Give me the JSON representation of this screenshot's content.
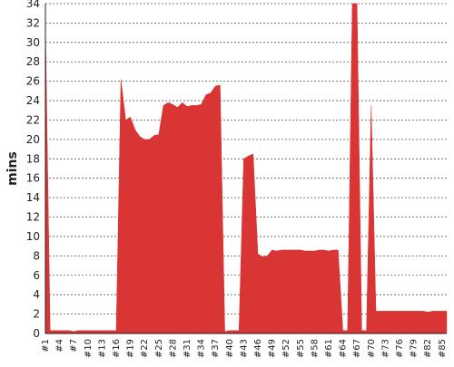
{
  "chart_data": {
    "type": "area",
    "title": "",
    "xlabel": "",
    "ylabel": "mins",
    "ylim": [
      0,
      34
    ],
    "y_ticks": [
      0,
      2,
      4,
      6,
      8,
      10,
      12,
      14,
      16,
      18,
      20,
      22,
      24,
      26,
      28,
      30,
      32,
      34
    ],
    "x_tick_labels": [
      "#1",
      "#4",
      "#7",
      "#10",
      "#13",
      "#16",
      "#19",
      "#22",
      "#25",
      "#28",
      "#31",
      "#34",
      "#37",
      "#40",
      "#43",
      "#46",
      "#49",
      "#52",
      "#55",
      "#58",
      "#61",
      "#64",
      "#67",
      "#70",
      "#73",
      "#76",
      "#79",
      "#82",
      "#85"
    ],
    "grid": "horizontal dashed",
    "legend": "none",
    "series": [
      {
        "color": "#d93535",
        "x": [
          "#1",
          "#2",
          "#3",
          "#4",
          "#5",
          "#6",
          "#7",
          "#8",
          "#9",
          "#10",
          "#11",
          "#12",
          "#13",
          "#14",
          "#15",
          "#16",
          "#17",
          "#18",
          "#19",
          "#20",
          "#21",
          "#22",
          "#23",
          "#24",
          "#25",
          "#26",
          "#27",
          "#28",
          "#29",
          "#30",
          "#31",
          "#32",
          "#33",
          "#34",
          "#35",
          "#36",
          "#37",
          "#38",
          "#39",
          "#40",
          "#41",
          "#42",
          "#43",
          "#44",
          "#45",
          "#46",
          "#47",
          "#48",
          "#49",
          "#50",
          "#51",
          "#52",
          "#53",
          "#54",
          "#55",
          "#56",
          "#57",
          "#58",
          "#59",
          "#60",
          "#61",
          "#62",
          "#63",
          "#64",
          "#65",
          "#66",
          "#67",
          "#68",
          "#69",
          "#70",
          "#71",
          "#72",
          "#73",
          "#74",
          "#75",
          "#76",
          "#77",
          "#78",
          "#79",
          "#80",
          "#81",
          "#82",
          "#83",
          "#84",
          "#85",
          "#86"
        ],
        "values": [
          32,
          0.3,
          0.3,
          0.3,
          0.3,
          0.3,
          0.2,
          0.3,
          0.3,
          0.3,
          0.3,
          0.3,
          0.3,
          0.3,
          0.3,
          0.3,
          26.2,
          22,
          22.3,
          21,
          20.3,
          20,
          20,
          20.4,
          20.5,
          23.5,
          23.8,
          23.6,
          23.3,
          23.8,
          23.4,
          23.5,
          23.5,
          23.6,
          24.6,
          24.8,
          25.5,
          25.6,
          0.2,
          0.3,
          0.3,
          0.3,
          18,
          18.3,
          18.5,
          8.2,
          7.9,
          8,
          8.6,
          8.5,
          8.6,
          8.6,
          8.6,
          8.6,
          8.6,
          8.5,
          8.5,
          8.5,
          8.6,
          8.6,
          8.5,
          8.6,
          8.6,
          0.3,
          0.3,
          34.5,
          34.5,
          0.3,
          0.3,
          23.5,
          2.3,
          2.3,
          2.3,
          2.3,
          2.3,
          2.3,
          2.3,
          2.3,
          2.3,
          2.3,
          2.3,
          2.2,
          2.3,
          2.3,
          2.3,
          2.3
        ]
      }
    ]
  }
}
